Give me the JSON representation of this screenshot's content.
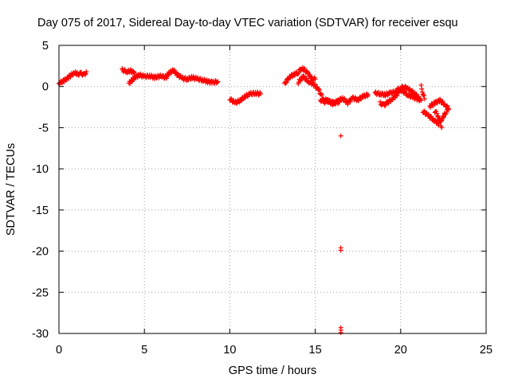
{
  "chart_data": {
    "type": "scatter",
    "title": "Day 075 of 2017, Sidereal Day-to-day VTEC variation (SDTVAR) for receiver esqu",
    "xlabel": "GPS time / hours",
    "ylabel": "SDTVAR / TECUs",
    "xlim": [
      0,
      25
    ],
    "ylim": [
      -30,
      5
    ],
    "xticks": [
      0,
      5,
      10,
      15,
      20,
      25
    ],
    "yticks": [
      5,
      0,
      -5,
      -10,
      -15,
      -20,
      -25,
      -30
    ],
    "grid": true,
    "marker": "+",
    "color": "#ff0000",
    "segments": [
      {
        "x": [
          0.0,
          0.3,
          0.6,
          0.9,
          1.1,
          1.3
        ],
        "y": [
          0.4,
          0.7,
          1.2,
          1.7,
          1.5,
          1.6
        ]
      },
      {
        "x": [
          1.3,
          1.5,
          1.6
        ],
        "y": [
          1.6,
          1.4,
          1.8
        ]
      },
      {
        "x": [
          3.7,
          4.0,
          4.2,
          4.4
        ],
        "y": [
          2.0,
          1.8,
          1.9,
          1.7
        ]
      },
      {
        "x": [
          4.1,
          4.3,
          4.5,
          4.7,
          5.0,
          5.3,
          5.6,
          6.0,
          6.3
        ],
        "y": [
          0.4,
          0.8,
          1.2,
          1.4,
          1.2,
          1.3,
          1.1,
          1.3,
          1.0
        ]
      },
      {
        "x": [
          6.3,
          6.5,
          6.7,
          6.9,
          7.2,
          7.5,
          7.8,
          8.1,
          8.4,
          8.7,
          9.0,
          9.3
        ],
        "y": [
          1.3,
          1.7,
          2.0,
          1.5,
          1.0,
          0.9,
          1.1,
          0.9,
          0.8,
          0.6,
          0.5,
          0.6
        ]
      },
      {
        "x": [
          10.0,
          10.3,
          10.6,
          10.9,
          11.2,
          11.5,
          11.8
        ],
        "y": [
          -1.5,
          -2.0,
          -1.7,
          -1.2,
          -0.9,
          -0.8,
          -0.9
        ]
      },
      {
        "x": [
          13.2,
          13.5,
          13.8,
          14.0,
          14.2,
          14.4,
          14.6,
          14.8,
          15.0
        ],
        "y": [
          0.3,
          1.2,
          1.5,
          1.7,
          2.2,
          2.0,
          1.5,
          1.0,
          0.9
        ]
      },
      {
        "x": [
          14.0,
          14.3,
          14.6,
          14.9,
          15.2,
          15.5,
          15.8,
          16.1,
          16.4
        ],
        "y": [
          0.5,
          1.2,
          0.6,
          0.3,
          -0.4,
          -1.6,
          -1.8,
          -2.0,
          -1.9
        ]
      },
      {
        "x": [
          15.3,
          15.5,
          15.7,
          16.0,
          16.3,
          16.6,
          16.9,
          17.2,
          17.5,
          17.8,
          18.1
        ],
        "y": [
          -1.6,
          -1.9,
          -1.7,
          -2.1,
          -1.8,
          -1.4,
          -2.0,
          -1.4,
          -1.6,
          -1.2,
          -1.0
        ]
      },
      {
        "x": [
          18.5,
          18.8,
          19.1,
          19.4,
          19.7,
          20.0
        ],
        "y": [
          -0.8,
          -0.9,
          -1.0,
          -0.8,
          -0.6,
          -0.5
        ]
      },
      {
        "x": [
          18.8,
          19.0,
          19.2,
          19.5,
          19.8,
          20.0,
          20.2,
          20.5,
          20.8,
          21.1
        ],
        "y": [
          -2.0,
          -2.3,
          -2.0,
          -1.5,
          -1.0,
          -0.2,
          0.0,
          -0.4,
          -0.8,
          -1.5
        ]
      },
      {
        "x": [
          19.8,
          20.1,
          20.4,
          20.7,
          21.0,
          21.2
        ],
        "y": [
          -0.3,
          -0.5,
          -1.0,
          -1.3,
          -1.5,
          -1.7
        ]
      },
      {
        "x": [
          21.2,
          21.3,
          21.4
        ],
        "y": [
          0.0,
          -0.8,
          -1.5
        ]
      },
      {
        "x": [
          21.3,
          21.6,
          21.9,
          22.2,
          22.4,
          22.6,
          22.8
        ],
        "y": [
          -3.0,
          -3.5,
          -4.0,
          -4.5,
          -4.0,
          -3.3,
          -2.8
        ]
      },
      {
        "x": [
          21.7,
          22.0,
          22.3,
          22.6,
          22.8
        ],
        "y": [
          -2.4,
          -2.0,
          -1.7,
          -2.2,
          -2.7
        ]
      },
      {
        "x": [
          22.0,
          22.2,
          22.4
        ],
        "y": [
          -3.0,
          -3.5,
          -5.0
        ]
      }
    ],
    "outliers": {
      "x": [
        16.5,
        16.5,
        16.5,
        16.5,
        16.5,
        16.5
      ],
      "y": [
        -6.0,
        -19.6,
        -19.9,
        -29.3,
        -29.6,
        -29.9
      ]
    }
  }
}
